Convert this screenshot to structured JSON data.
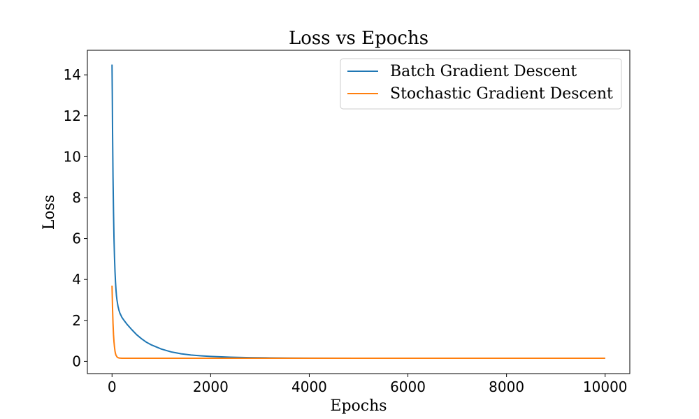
{
  "chart_data": {
    "type": "line",
    "title": "Loss vs Epochs",
    "xlabel": "Epochs",
    "ylabel": "Loss",
    "xlim": [
      -500,
      10500
    ],
    "ylim": [
      -0.6,
      15.2
    ],
    "xticks": [
      0,
      2000,
      4000,
      6000,
      8000,
      10000
    ],
    "yticks": [
      0,
      2,
      4,
      6,
      8,
      10,
      12,
      14
    ],
    "grid": false,
    "legend_position": "top-right",
    "series": [
      {
        "name": "Batch Gradient Descent",
        "color": "#1f77b4",
        "x": [
          0,
          5,
          10,
          20,
          30,
          40,
          50,
          60,
          70,
          80,
          90,
          100,
          120,
          140,
          160,
          180,
          200,
          250,
          300,
          400,
          500,
          600,
          700,
          800,
          1000,
          1200,
          1400,
          1600,
          1800,
          2000,
          2400,
          2800,
          3200,
          3600,
          4000,
          5000,
          6000,
          7000,
          8000,
          9000,
          10000
        ],
        "y": [
          14.5,
          13.1,
          11.4,
          9.0,
          7.3,
          6.0,
          5.1,
          4.4,
          3.9,
          3.5,
          3.2,
          3.0,
          2.7,
          2.5,
          2.35,
          2.25,
          2.15,
          1.98,
          1.82,
          1.55,
          1.3,
          1.1,
          0.93,
          0.8,
          0.6,
          0.46,
          0.37,
          0.31,
          0.27,
          0.24,
          0.2,
          0.18,
          0.17,
          0.16,
          0.155,
          0.15,
          0.15,
          0.15,
          0.15,
          0.15,
          0.15
        ]
      },
      {
        "name": "Stochastic Gradient Descent",
        "color": "#ff7f0e",
        "x": [
          0,
          10,
          20,
          30,
          40,
          50,
          60,
          70,
          80,
          100,
          120,
          150,
          200,
          300,
          500,
          1000,
          2000,
          4000,
          6000,
          8000,
          10000
        ],
        "y": [
          3.7,
          2.6,
          1.85,
          1.3,
          0.95,
          0.7,
          0.5,
          0.38,
          0.3,
          0.22,
          0.18,
          0.16,
          0.15,
          0.15,
          0.15,
          0.15,
          0.15,
          0.15,
          0.15,
          0.15,
          0.15
        ]
      }
    ]
  }
}
